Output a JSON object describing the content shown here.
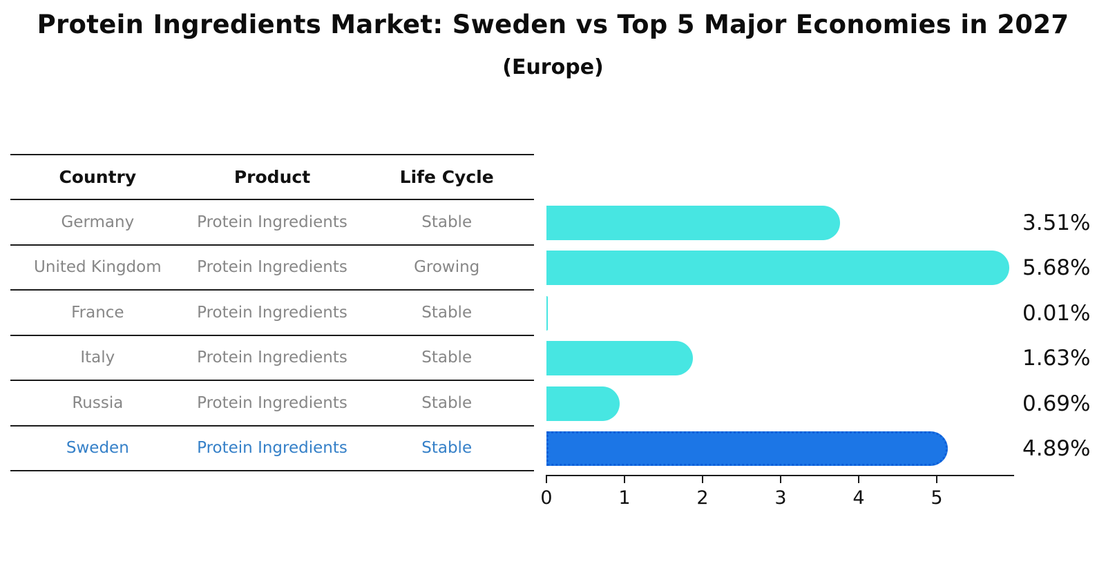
{
  "title": "Protein Ingredients Market: Sweden vs Top 5 Major Economies in 2027",
  "subtitle": "(Europe)",
  "table": {
    "headers": [
      "Country",
      "Product",
      "Life Cycle"
    ],
    "rows": [
      {
        "country": "Germany",
        "product": "Protein Ingredients",
        "life_cycle": "Stable",
        "highlighted": false
      },
      {
        "country": "United Kingdom",
        "product": "Protein Ingredients",
        "life_cycle": "Growing",
        "highlighted": false
      },
      {
        "country": "France",
        "product": "Protein Ingredients",
        "life_cycle": "Stable",
        "highlighted": false
      },
      {
        "country": "Italy",
        "product": "Protein Ingredients",
        "life_cycle": "Stable",
        "highlighted": false
      },
      {
        "country": "Russia",
        "product": "Protein Ingredients",
        "life_cycle": "Stable",
        "highlighted": false
      },
      {
        "country": "Sweden",
        "product": "Protein Ingredients",
        "life_cycle": "Stable",
        "highlighted": true
      }
    ]
  },
  "chart_data": {
    "type": "bar",
    "orientation": "horizontal",
    "title": "Protein Ingredients Market: Sweden vs Top 5 Major Economies in 2027",
    "subtitle": "(Europe)",
    "categories": [
      "Germany",
      "United Kingdom",
      "France",
      "Italy",
      "Russia",
      "Sweden"
    ],
    "values": [
      3.51,
      5.68,
      0.01,
      1.63,
      0.69,
      4.89
    ],
    "value_labels": [
      "3.51%",
      "5.68%",
      "0.01%",
      "1.63%",
      "0.69%",
      "4.89%"
    ],
    "unit": "percent",
    "x_ticks": [
      0,
      1,
      2,
      3,
      4,
      5
    ],
    "xlim": [
      0,
      6
    ],
    "xlabel": "",
    "ylabel": "",
    "grid": false,
    "legend": false,
    "highlight_index": 5,
    "highlighted_category": "Sweden",
    "colors": {
      "bar": "#47E6E2",
      "highlight_bar": "#1C76E6",
      "highlight_bar_border": "#0C5ED8"
    }
  },
  "colors": {
    "title_text": "#0d0d0d",
    "table_header_text": "#111111",
    "table_text": "#878787",
    "highlight_text": "#3580C8",
    "axis_text": "#111111",
    "line": "#1a1a1a"
  }
}
